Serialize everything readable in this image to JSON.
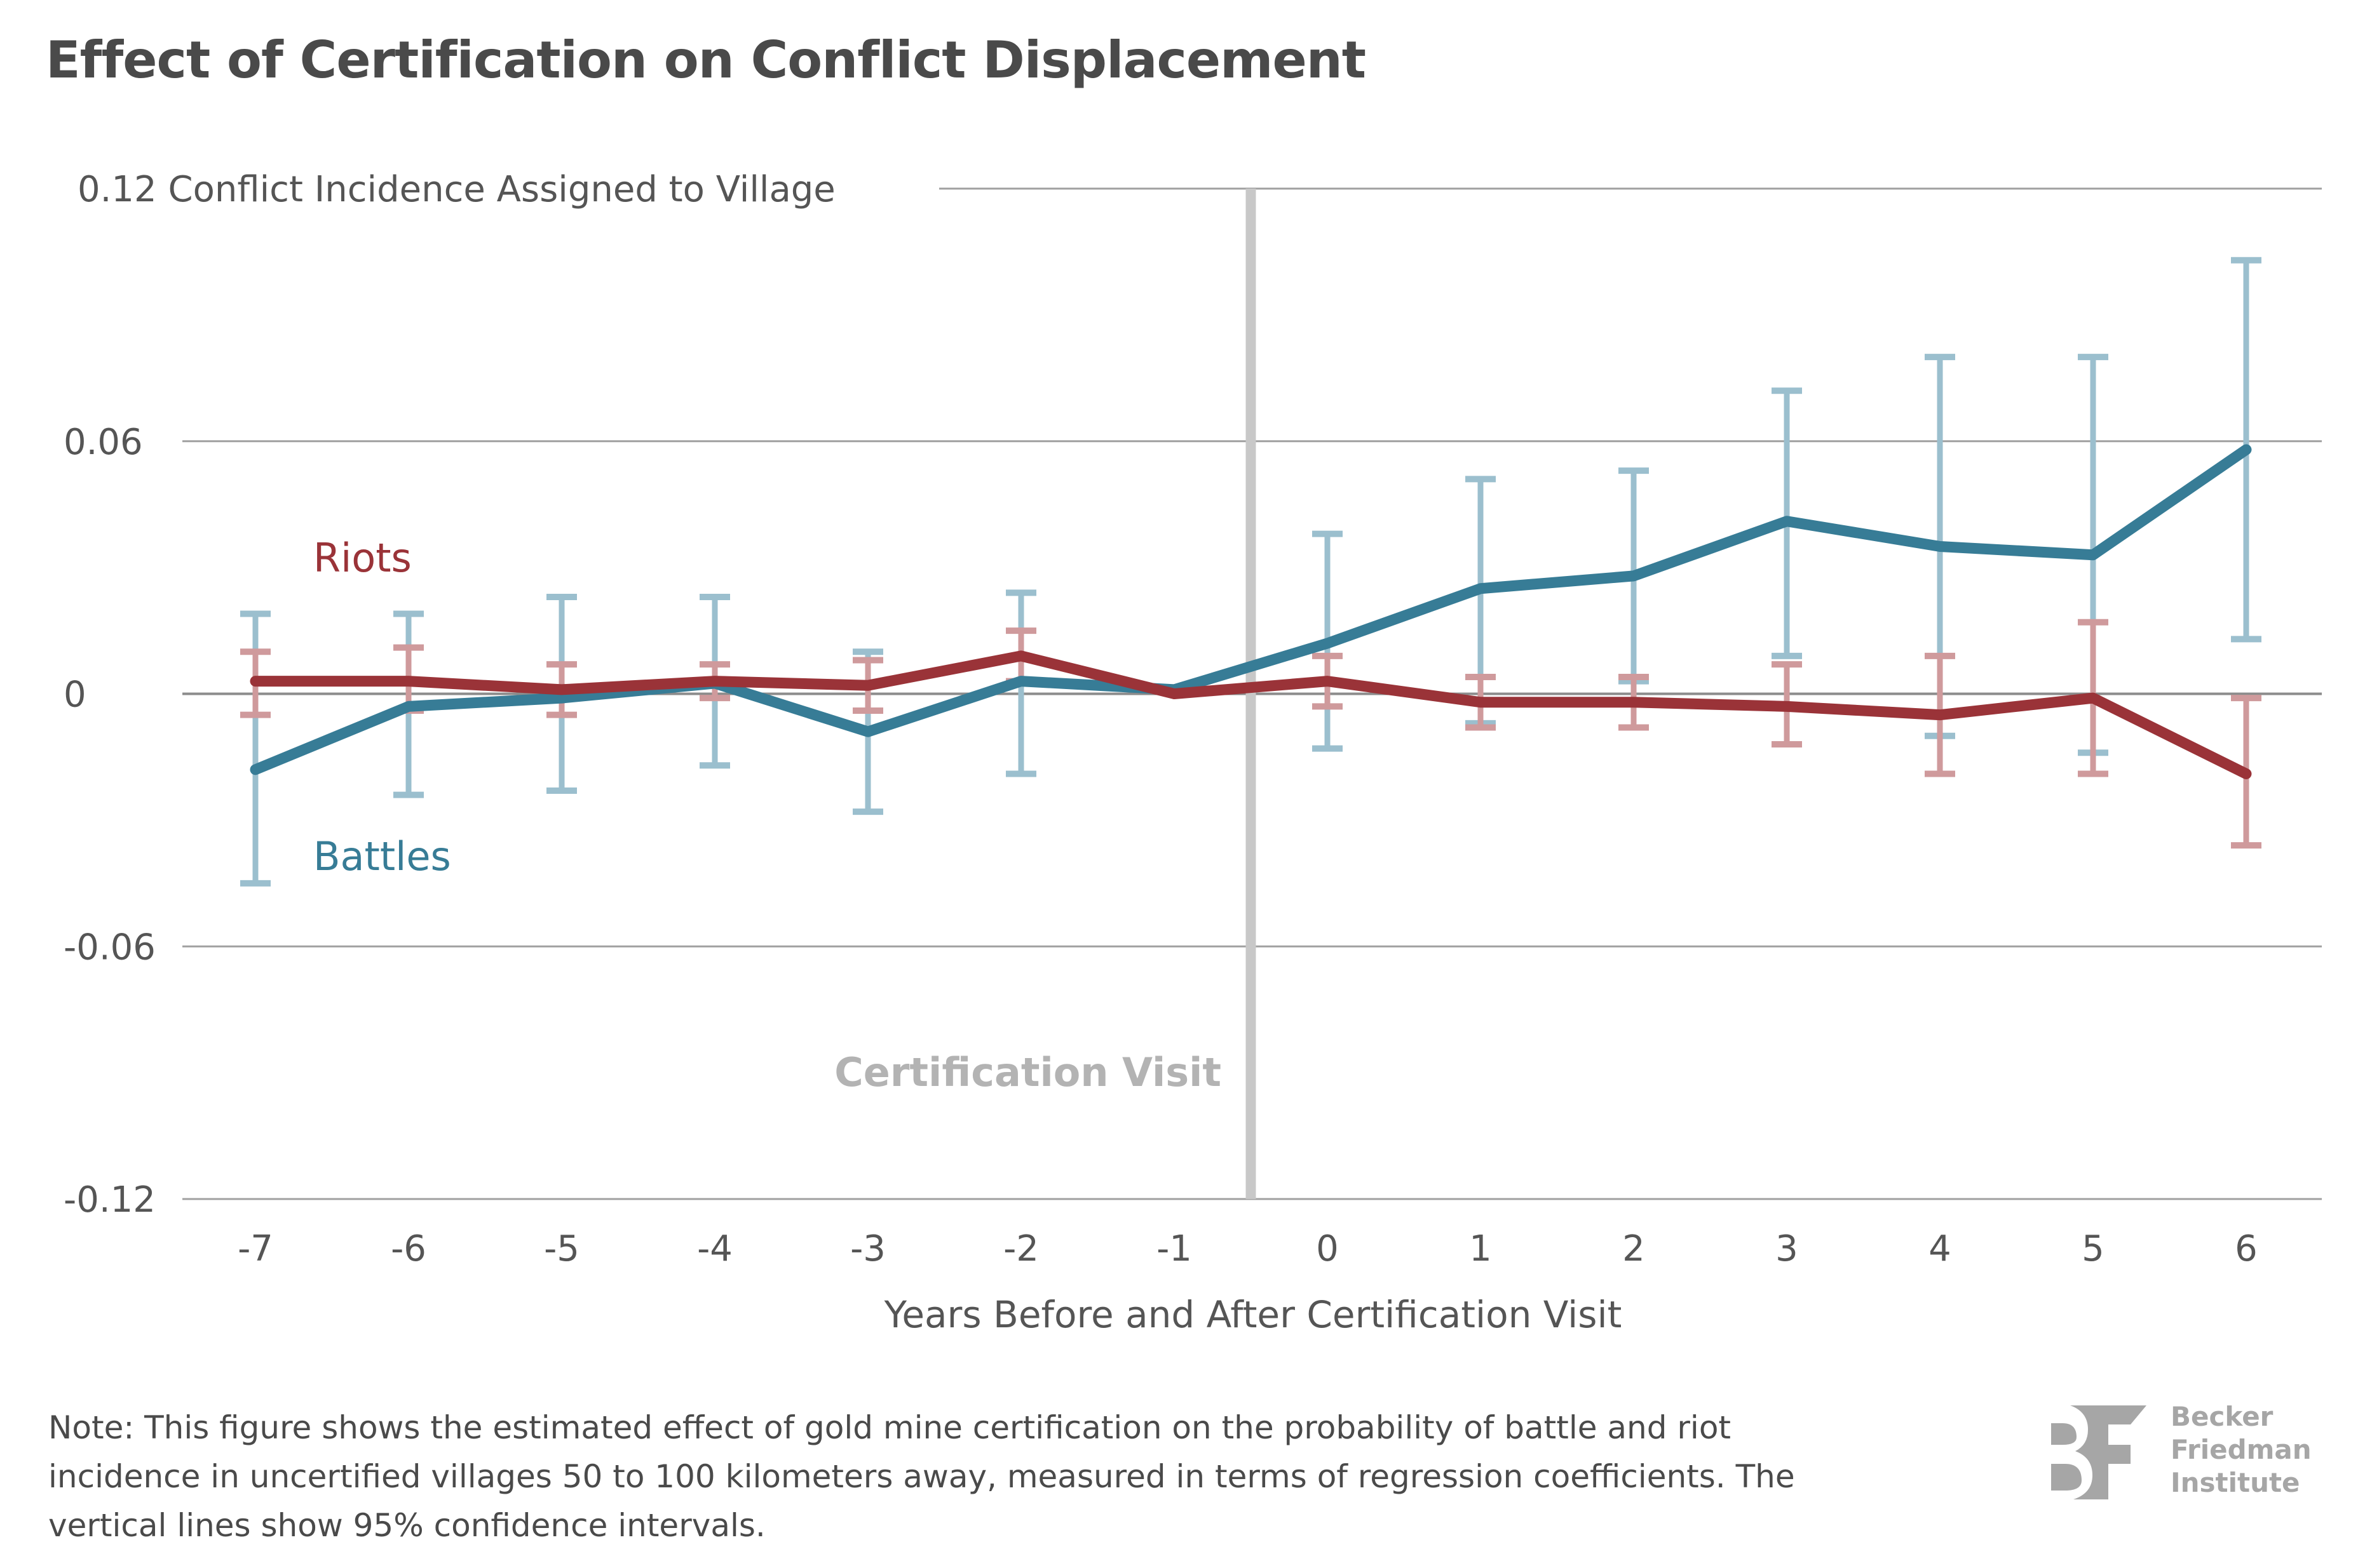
{
  "header": {
    "title": "Effect of Certification on Conflict Displacement"
  },
  "chart_data": {
    "type": "line",
    "title": "Effect of Certification on Conflict Displacement",
    "xlabel": "Years Before and After Certification Visit",
    "ylabel": "Conflict Incidence Assigned to Village",
    "x": [
      -7,
      -6,
      -5,
      -4,
      -3,
      -2,
      -1,
      0,
      1,
      2,
      3,
      4,
      5,
      6
    ],
    "x_tick_labels": [
      "-7",
      "-6",
      "-5",
      "-4",
      "-3",
      "-2",
      "-1",
      "0",
      "1",
      "2",
      "3",
      "4",
      "5",
      "6"
    ],
    "ylim": [
      -0.12,
      0.12
    ],
    "y_ticks": [
      -0.12,
      -0.06,
      0,
      0.06,
      0.12
    ],
    "y_tick_labels": [
      "-0.12",
      "-0.06",
      "0",
      "0.06",
      "0.12"
    ],
    "grid": true,
    "annotations": [
      {
        "text": "Certification Visit",
        "x": -0.5
      }
    ],
    "series": [
      {
        "name": "Riots",
        "color": "#9a3338",
        "ci_color": "#cf9a9c",
        "values": [
          0.003,
          0.003,
          0.001,
          0.003,
          0.002,
          0.009,
          0.0,
          0.003,
          -0.002,
          -0.002,
          -0.003,
          -0.005,
          -0.001,
          -0.019
        ],
        "ci_upper": [
          0.01,
          0.011,
          0.007,
          0.007,
          0.008,
          0.015,
          null,
          0.009,
          0.004,
          0.004,
          0.007,
          0.009,
          0.017,
          -0.001
        ],
        "ci_lower": [
          -0.005,
          -0.004,
          -0.005,
          -0.001,
          -0.004,
          0.003,
          null,
          -0.003,
          -0.008,
          -0.008,
          -0.012,
          -0.019,
          -0.019,
          -0.036
        ]
      },
      {
        "name": "Battles",
        "color": "#377c96",
        "ci_color": "#9bbfce",
        "values": [
          -0.018,
          -0.003,
          -0.001,
          0.0025,
          -0.009,
          0.003,
          0.001,
          0.012,
          0.025,
          0.028,
          0.041,
          0.035,
          0.033,
          0.058
        ],
        "ci_upper": [
          0.019,
          0.019,
          0.023,
          0.023,
          0.01,
          0.024,
          null,
          0.038,
          0.051,
          0.053,
          0.072,
          0.08,
          0.08,
          0.103
        ],
        "ci_lower": [
          -0.045,
          -0.024,
          -0.023,
          -0.017,
          -0.028,
          -0.019,
          null,
          -0.013,
          -0.007,
          0.003,
          0.009,
          -0.01,
          -0.014,
          0.013
        ]
      }
    ]
  },
  "labels": {
    "riots": "Riots",
    "battles": "Battles",
    "certification_visit": "Certification Visit",
    "y_axis_title": "Conflict Incidence Assigned to Village",
    "x_axis_title": "Years Before and After Certification Visit"
  },
  "footer": {
    "note": "Note: This figure shows the estimated effect of gold mine certification on the probability of battle and riot incidence in uncertified villages 50 to 100 kilometers away, measured in terms of regression coefficients. The vertical lines show 95% confidence intervals.",
    "logo_line1": "Becker",
    "logo_line2": "Friedman",
    "logo_line3": "Institute"
  }
}
